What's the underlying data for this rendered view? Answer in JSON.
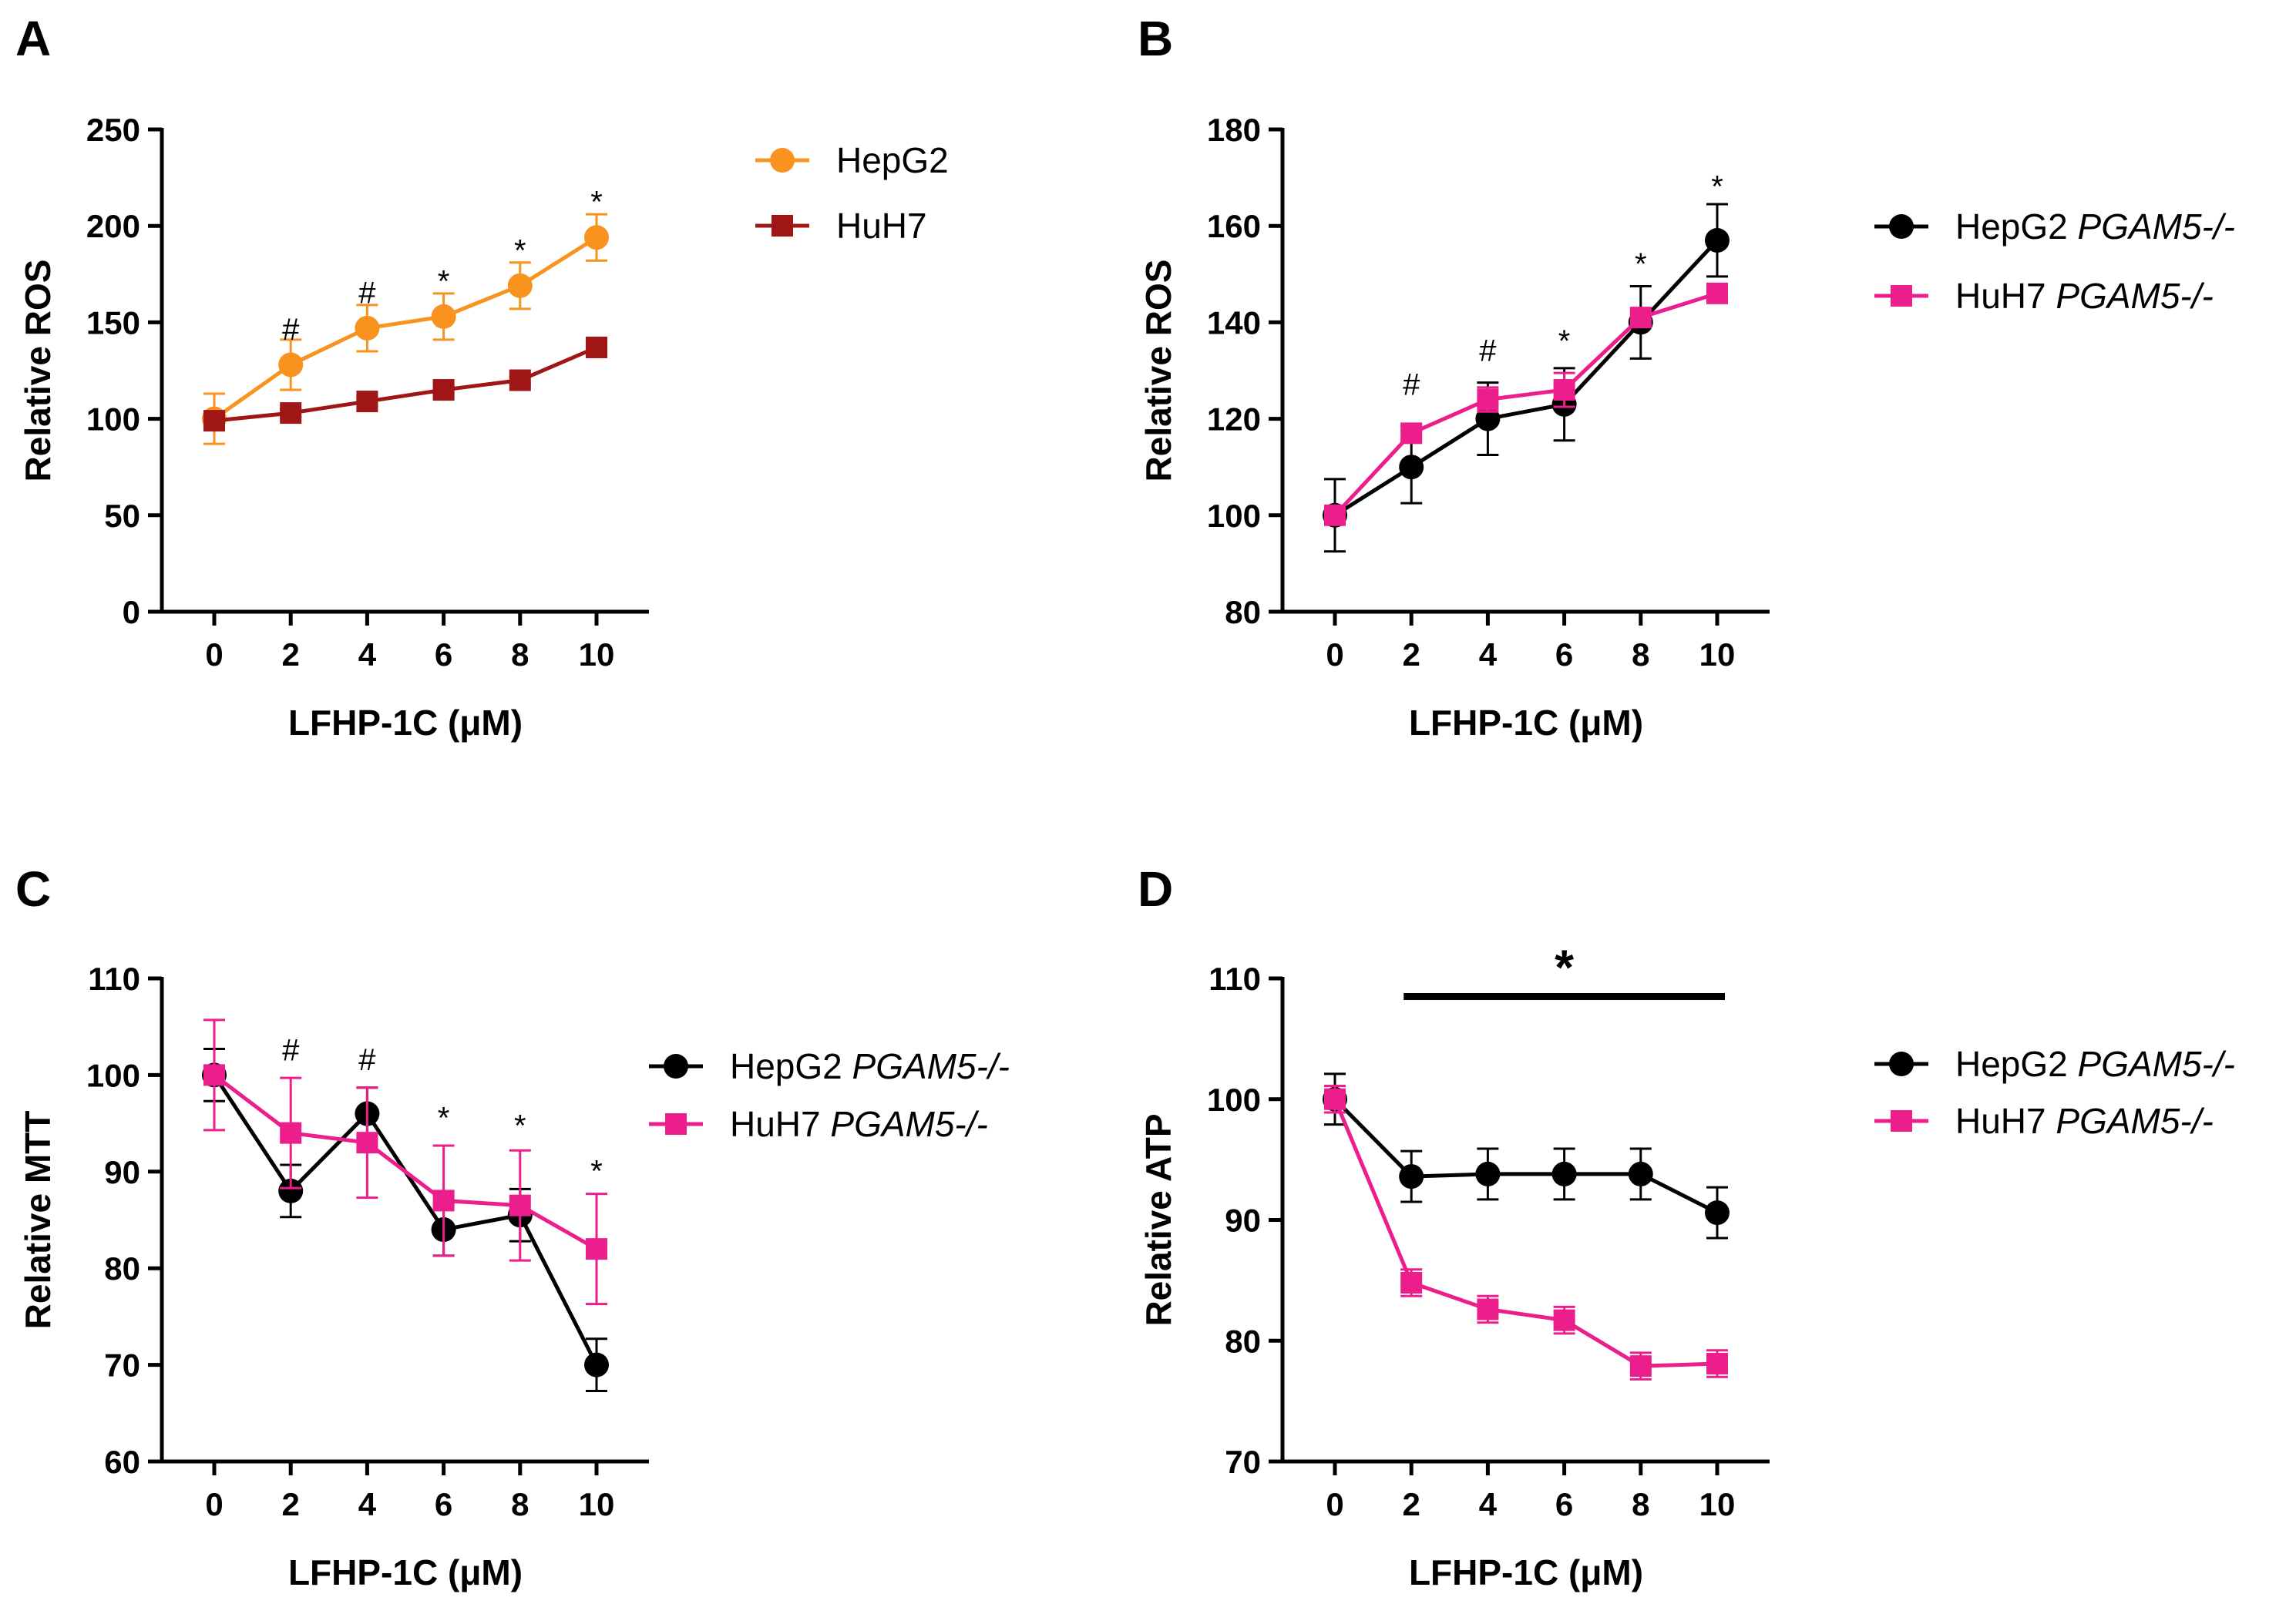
{
  "figure": {
    "panels": [
      "A",
      "B",
      "C",
      "D"
    ]
  },
  "chart_data": [
    {
      "panel": "A",
      "type": "line",
      "title": "",
      "xlabel": "LFHP-1C (μM)",
      "ylabel": "Relative ROS",
      "x": [
        0,
        2,
        4,
        6,
        8,
        10
      ],
      "xticks": [
        "0",
        "2",
        "4",
        "6",
        "8",
        "10"
      ],
      "ylim": [
        0,
        250
      ],
      "yticks": [
        0,
        50,
        100,
        150,
        200,
        250
      ],
      "legend_position": "right",
      "series": [
        {
          "name": "HepG2",
          "name_italic": "",
          "color": "#F7931E",
          "marker": "circle",
          "values": [
            100,
            128,
            147,
            153,
            169,
            194
          ],
          "errors": [
            13,
            13,
            12,
            12,
            12,
            12
          ]
        },
        {
          "name": "HuH7",
          "name_italic": "",
          "color": "#A01515",
          "marker": "square",
          "values": [
            99,
            103,
            109,
            115,
            120,
            137
          ],
          "errors": [
            2,
            2,
            2,
            2,
            2,
            2
          ]
        }
      ],
      "annotations": [
        "",
        "#",
        "#",
        "*",
        "*",
        "*"
      ],
      "annotation_values": [
        0,
        141,
        160,
        166,
        182,
        207
      ]
    },
    {
      "panel": "B",
      "type": "line",
      "title": "",
      "xlabel": "LFHP-1C (μM)",
      "ylabel": "Relative ROS",
      "x": [
        0,
        2,
        4,
        6,
        8,
        10
      ],
      "xticks": [
        "0",
        "2",
        "4",
        "6",
        "8",
        "10"
      ],
      "ylim": [
        80,
        180
      ],
      "yticks": [
        80,
        100,
        120,
        140,
        160,
        180
      ],
      "legend_position": "right",
      "series": [
        {
          "name": "HepG2 ",
          "name_italic": "PGAM5-/-",
          "color": "#000000",
          "marker": "circle",
          "values": [
            100,
            110,
            120,
            123,
            140,
            157
          ],
          "errors": [
            7.5,
            7.5,
            7.5,
            7.5,
            7.5,
            7.5
          ]
        },
        {
          "name": "HuH7 ",
          "name_italic": "PGAM5-/-",
          "color": "#EC1E8C",
          "marker": "square",
          "values": [
            100,
            117,
            124,
            126,
            141,
            146
          ],
          "errors": [
            0,
            1.5,
            2.5,
            3.5,
            1.5,
            1
          ]
        }
      ],
      "annotations": [
        "",
        "#",
        "#",
        "*",
        "*",
        "*"
      ],
      "annotation_values": [
        0,
        125,
        132,
        134,
        150,
        166
      ]
    },
    {
      "panel": "C",
      "type": "line",
      "title": "",
      "xlabel": "LFHP-1C (μM)",
      "ylabel": "Relative MTT",
      "x": [
        0,
        2,
        4,
        6,
        8,
        10
      ],
      "xticks": [
        "0",
        "2",
        "4",
        "6",
        "8",
        "10"
      ],
      "ylim": [
        60,
        110
      ],
      "yticks": [
        60,
        70,
        80,
        90,
        100,
        110
      ],
      "legend_position": "right",
      "series": [
        {
          "name": "HepG2 ",
          "name_italic": "PGAM5-/-",
          "color": "#000000",
          "marker": "circle",
          "values": [
            100,
            88,
            96,
            84,
            85.5,
            70
          ],
          "errors": [
            2.7,
            2.7,
            2.7,
            2.7,
            2.7,
            2.7
          ]
        },
        {
          "name": "HuH7 ",
          "name_italic": "PGAM5-/-",
          "color": "#EC1E8C",
          "marker": "square",
          "values": [
            100,
            94,
            93,
            87,
            86.5,
            82
          ],
          "errors": [
            5.7,
            5.7,
            5.7,
            5.7,
            5.7,
            5.7
          ]
        }
      ],
      "annotations": [
        "",
        "#",
        "#",
        "*",
        "*",
        "*"
      ],
      "annotation_values": [
        0,
        101.5,
        100.5,
        94.5,
        93.7,
        89
      ]
    },
    {
      "panel": "D",
      "type": "line",
      "title": "",
      "xlabel": "LFHP-1C (μM)",
      "ylabel": "Relative ATP",
      "x": [
        0,
        2,
        4,
        6,
        8,
        10
      ],
      "xticks": [
        "0",
        "2",
        "4",
        "6",
        "8",
        "10"
      ],
      "ylim": [
        70,
        110
      ],
      "yticks": [
        70,
        80,
        90,
        100,
        110
      ],
      "legend_position": "right",
      "series": [
        {
          "name": "HepG2 ",
          "name_italic": "PGAM5-/-",
          "color": "#000000",
          "marker": "circle",
          "values": [
            100,
            93.6,
            93.8,
            93.8,
            93.8,
            90.6
          ],
          "errors": [
            2.1,
            2.1,
            2.1,
            2.1,
            2.1,
            2.1
          ]
        },
        {
          "name": "HuH7 ",
          "name_italic": "PGAM5-/-",
          "color": "#EC1E8C",
          "marker": "square",
          "values": [
            100,
            84.8,
            82.6,
            81.7,
            77.9,
            78.1
          ],
          "errors": [
            1.1,
            1.1,
            1.1,
            1.1,
            1.1,
            1.1
          ]
        }
      ],
      "annotations": [],
      "annotation_values": [],
      "significance_bar": {
        "from": 2,
        "to": 10,
        "value": 108.5,
        "label": "*"
      }
    }
  ]
}
